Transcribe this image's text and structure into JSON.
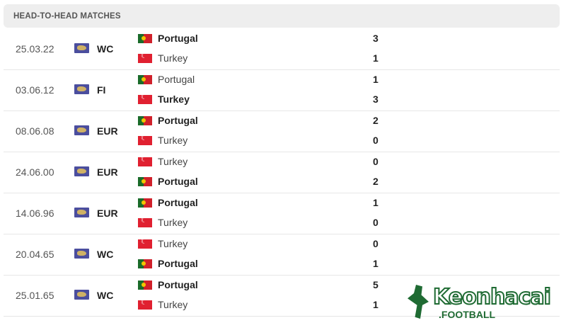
{
  "header": {
    "title": "HEAD-TO-HEAD MATCHES"
  },
  "matches": [
    {
      "date": "25.03.22",
      "competition": "WC",
      "home": {
        "name": "Portugal",
        "flag": "portugal",
        "score": "3",
        "winner": true
      },
      "away": {
        "name": "Turkey",
        "flag": "turkey",
        "score": "1",
        "winner": false
      }
    },
    {
      "date": "03.06.12",
      "competition": "FI",
      "home": {
        "name": "Portugal",
        "flag": "portugal",
        "score": "1",
        "winner": false
      },
      "away": {
        "name": "Turkey",
        "flag": "turkey",
        "score": "3",
        "winner": true
      }
    },
    {
      "date": "08.06.08",
      "competition": "EUR",
      "home": {
        "name": "Portugal",
        "flag": "portugal",
        "score": "2",
        "winner": true
      },
      "away": {
        "name": "Turkey",
        "flag": "turkey",
        "score": "0",
        "winner": false
      }
    },
    {
      "date": "24.06.00",
      "competition": "EUR",
      "home": {
        "name": "Turkey",
        "flag": "turkey",
        "score": "0",
        "winner": false
      },
      "away": {
        "name": "Portugal",
        "flag": "portugal",
        "score": "2",
        "winner": true
      }
    },
    {
      "date": "14.06.96",
      "competition": "EUR",
      "home": {
        "name": "Portugal",
        "flag": "portugal",
        "score": "1",
        "winner": true
      },
      "away": {
        "name": "Turkey",
        "flag": "turkey",
        "score": "0",
        "winner": false
      }
    },
    {
      "date": "20.04.65",
      "competition": "WC",
      "home": {
        "name": "Turkey",
        "flag": "turkey",
        "score": "0",
        "winner": false
      },
      "away": {
        "name": "Portugal",
        "flag": "portugal",
        "score": "1",
        "winner": true
      }
    },
    {
      "date": "25.01.65",
      "competition": "WC",
      "home": {
        "name": "Portugal",
        "flag": "portugal",
        "score": "5",
        "winner": true
      },
      "away": {
        "name": "Turkey",
        "flag": "turkey",
        "score": "1",
        "winner": false
      }
    }
  ],
  "watermark": {
    "brand": "Keonhacai",
    "sub": ".FOOTBALL"
  }
}
